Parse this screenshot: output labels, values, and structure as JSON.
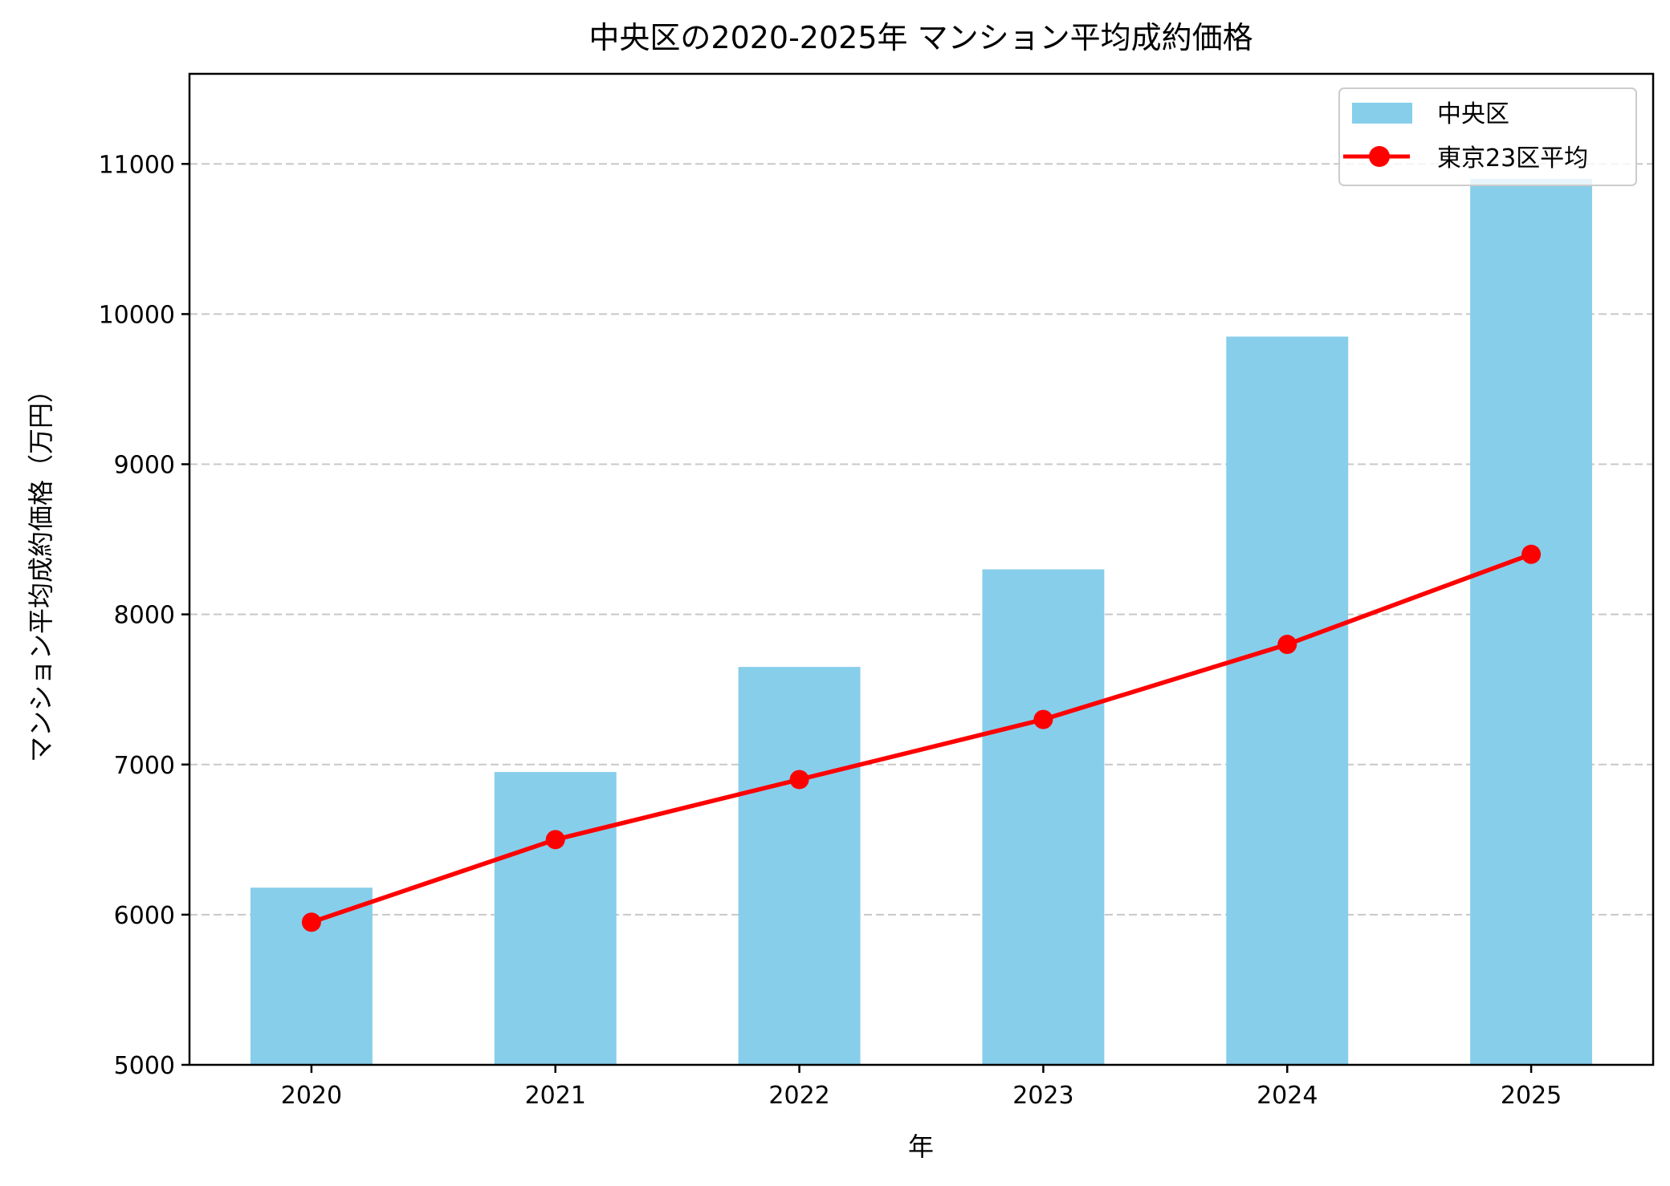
{
  "chart_data": {
    "type": "bar",
    "title": "中央区の2020-2025年 マンション平均成約価格",
    "xlabel": "年",
    "ylabel": "マンション平均成約価格（万円）",
    "categories": [
      "2020",
      "2021",
      "2022",
      "2023",
      "2024",
      "2025"
    ],
    "ylim": [
      5000,
      11600
    ],
    "yticks": [
      5000,
      6000,
      7000,
      8000,
      9000,
      10000,
      11000
    ],
    "grid": "y-dashed",
    "legend_position": "top-right",
    "series": [
      {
        "name": "中央区",
        "kind": "bar",
        "color": "#87CEEB",
        "values": [
          6180,
          6950,
          7650,
          8300,
          9850,
          10900
        ]
      },
      {
        "name": "東京23区平均",
        "kind": "line",
        "marker": "circle",
        "color": "#FF0000",
        "values": [
          5950,
          6500,
          6900,
          7300,
          7800,
          8400
        ]
      }
    ]
  }
}
